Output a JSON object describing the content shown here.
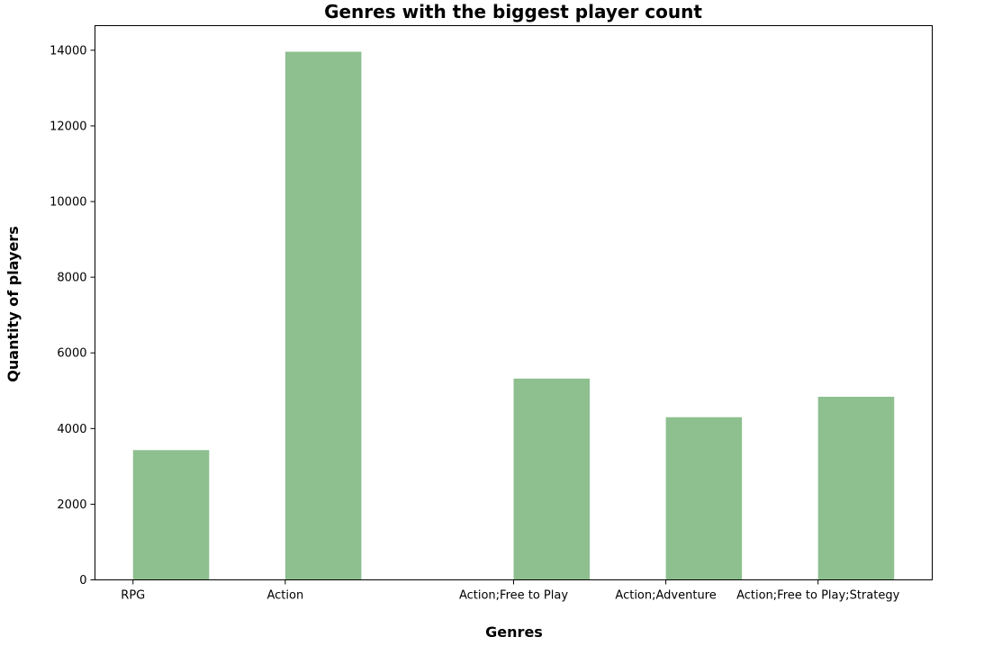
{
  "chart_data": {
    "type": "bar",
    "title": "Genres with the biggest player count",
    "xlabel": "Genres",
    "ylabel": "Quantity of players",
    "categories": [
      "RPG",
      "Action",
      "Action;Free to Play",
      "Action;Adventure",
      "Action;Free to Play;Strategy"
    ],
    "category_positions": [
      0.5,
      1.5,
      3.0,
      4.0,
      5.0
    ],
    "values": [
      3430,
      13960,
      5320,
      4300,
      4840
    ],
    "xlim": [
      0,
      5.5
    ],
    "ylim": [
      0,
      14650
    ],
    "yticks": [
      0,
      2000,
      4000,
      6000,
      8000,
      10000,
      12000,
      14000
    ],
    "bar_color": "#8dbf8f",
    "grid": false,
    "legend": "none"
  }
}
